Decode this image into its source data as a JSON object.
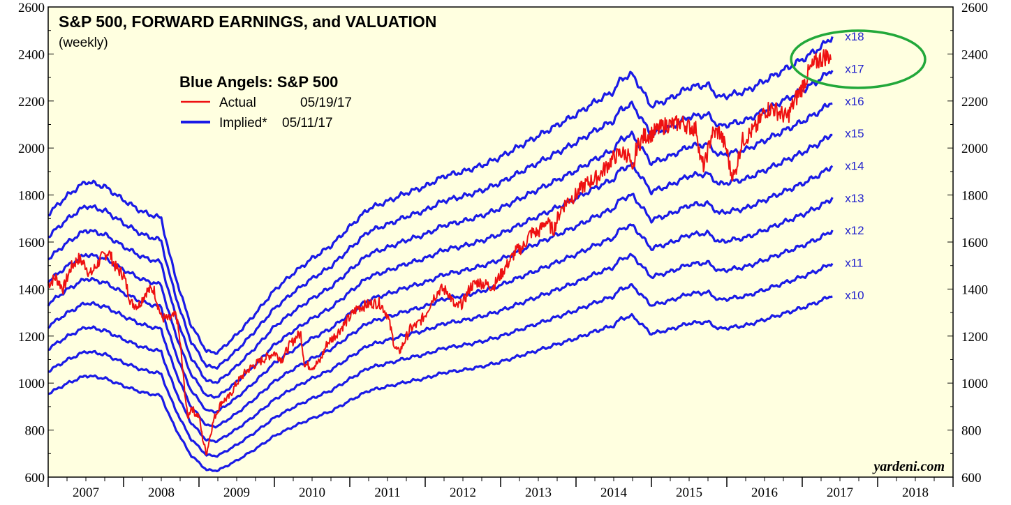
{
  "chart_data": {
    "type": "line",
    "title": "S&P 500, FORWARD EARNINGS, and VALUATION",
    "subtitle": "(weekly)",
    "legend": {
      "title": "Blue Angels: S&P 500",
      "entries": [
        {
          "label": "Actual",
          "date": "05/19/17",
          "color": "#ee1111"
        },
        {
          "label": "Implied*",
          "date": "05/11/17",
          "color": "#1a1ae6"
        }
      ]
    },
    "watermark": "yardeni.com",
    "ylim": [
      600,
      2600
    ],
    "y_ticks": [
      "600",
      "800",
      "1000",
      "1200",
      "1400",
      "1600",
      "1800",
      "2000",
      "2200",
      "2400",
      "2600"
    ],
    "xlim": [
      2007.0,
      2019.0
    ],
    "x_labels": [
      "2007",
      "2008",
      "2009",
      "2010",
      "2011",
      "2012",
      "2013",
      "2014",
      "2015",
      "2016",
      "2017",
      "2018"
    ],
    "multiples": [
      "x10",
      "x11",
      "x12",
      "x13",
      "x14",
      "x15",
      "x16",
      "x17",
      "x18"
    ],
    "forward_earnings": {
      "x": [
        2007.0,
        2007.25,
        2007.5,
        2007.75,
        2008.0,
        2008.25,
        2008.5,
        2008.6,
        2008.75,
        2008.9,
        2009.0,
        2009.1,
        2009.25,
        2009.5,
        2009.75,
        2010.0,
        2010.25,
        2010.5,
        2010.75,
        2011.0,
        2011.25,
        2011.5,
        2011.75,
        2012.0,
        2012.25,
        2012.5,
        2012.75,
        2013.0,
        2013.25,
        2013.5,
        2013.75,
        2014.0,
        2014.25,
        2014.5,
        2014.6,
        2014.75,
        2014.9,
        2015.0,
        2015.25,
        2015.5,
        2015.75,
        2015.9,
        2016.0,
        2016.25,
        2016.5,
        2016.75,
        2017.0,
        2017.25,
        2017.4
      ],
      "values": [
        95.5,
        99.8,
        103.2,
        102.0,
        98.8,
        96.0,
        94.5,
        86.5,
        77.0,
        69.0,
        66.2,
        63.0,
        62.8,
        67.0,
        72.0,
        77.5,
        81.5,
        85.0,
        88.0,
        92.5,
        96.8,
        98.5,
        100.5,
        102.0,
        104.5,
        105.5,
        107.0,
        109.0,
        111.5,
        114.0,
        116.5,
        119.0,
        122.0,
        124.5,
        127.5,
        128.5,
        124.0,
        121.0,
        122.8,
        125.5,
        126.0,
        123.0,
        123.5,
        124.5,
        127.0,
        129.5,
        132.0,
        135.0,
        137.5
      ]
    },
    "actual": {
      "x": [
        2007.0,
        2007.1,
        2007.2,
        2007.3,
        2007.4,
        2007.5,
        2007.55,
        2007.6,
        2007.7,
        2007.8,
        2007.9,
        2008.0,
        2008.1,
        2008.2,
        2008.3,
        2008.4,
        2008.5,
        2008.6,
        2008.7,
        2008.75,
        2008.8,
        2008.85,
        2008.9,
        2008.95,
        2009.0,
        2009.05,
        2009.1,
        2009.15,
        2009.2,
        2009.3,
        2009.4,
        2009.5,
        2009.6,
        2009.7,
        2009.8,
        2009.9,
        2010.0,
        2010.1,
        2010.2,
        2010.3,
        2010.35,
        2010.4,
        2010.5,
        2010.6,
        2010.7,
        2010.8,
        2010.9,
        2011.0,
        2011.1,
        2011.2,
        2011.3,
        2011.4,
        2011.5,
        2011.6,
        2011.65,
        2011.7,
        2011.8,
        2011.9,
        2012.0,
        2012.1,
        2012.2,
        2012.3,
        2012.4,
        2012.5,
        2012.6,
        2012.7,
        2012.8,
        2012.9,
        2013.0,
        2013.1,
        2013.2,
        2013.3,
        2013.4,
        2013.5,
        2013.6,
        2013.7,
        2013.8,
        2013.9,
        2014.0,
        2014.1,
        2014.2,
        2014.3,
        2014.4,
        2014.5,
        2014.6,
        2014.7,
        2014.75,
        2014.8,
        2014.9,
        2015.0,
        2015.1,
        2015.2,
        2015.3,
        2015.4,
        2015.5,
        2015.6,
        2015.65,
        2015.7,
        2015.8,
        2015.9,
        2016.0,
        2016.05,
        2016.1,
        2016.2,
        2016.3,
        2016.4,
        2016.5,
        2016.6,
        2016.7,
        2016.8,
        2016.9,
        2017.0,
        2017.1,
        2017.2,
        2017.3,
        2017.38
      ],
      "values": [
        1420,
        1450,
        1400,
        1490,
        1530,
        1500,
        1460,
        1480,
        1530,
        1560,
        1490,
        1460,
        1340,
        1330,
        1390,
        1400,
        1280,
        1270,
        1290,
        1170,
        1000,
        850,
        900,
        870,
        860,
        760,
        700,
        780,
        850,
        920,
        940,
        1000,
        1040,
        1070,
        1090,
        1110,
        1130,
        1100,
        1160,
        1200,
        1210,
        1080,
        1070,
        1090,
        1170,
        1200,
        1240,
        1280,
        1320,
        1330,
        1340,
        1340,
        1290,
        1150,
        1130,
        1160,
        1230,
        1250,
        1290,
        1360,
        1400,
        1390,
        1320,
        1340,
        1410,
        1430,
        1420,
        1410,
        1460,
        1510,
        1560,
        1580,
        1640,
        1640,
        1690,
        1650,
        1740,
        1780,
        1800,
        1840,
        1860,
        1880,
        1920,
        1960,
        1980,
        1970,
        1880,
        2000,
        2050,
        2060,
        2080,
        2100,
        2100,
        2110,
        2090,
        2080,
        1950,
        1920,
        2060,
        2070,
        1990,
        1900,
        1880,
        2030,
        2060,
        2090,
        2160,
        2170,
        2150,
        2130,
        2200,
        2260,
        2330,
        2370,
        2390,
        2390
      ]
    }
  }
}
